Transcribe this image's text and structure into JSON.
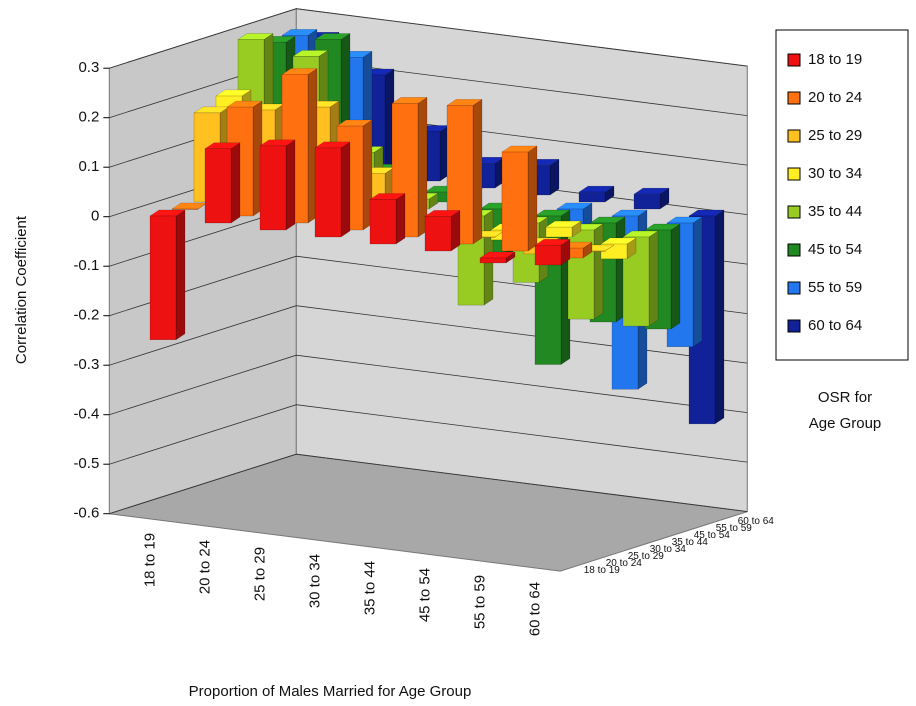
{
  "chart_data": {
    "type": "bar3d",
    "x_label": "Proportion of Males Married for Age Group",
    "y_label": "Correlation Coefficient",
    "z_label": [
      "OSR for",
      "Age Group"
    ],
    "categories": [
      "18 to 19",
      "20 to 24",
      "25 to 29",
      "30 to 34",
      "35 to 44",
      "45 to 54",
      "55 to 59",
      "60 to 64"
    ],
    "ylim": [
      -0.6,
      0.3
    ],
    "yticks": [
      -0.6,
      -0.5,
      -0.4,
      -0.3,
      -0.2,
      -0.1,
      0,
      0.1,
      0.2,
      0.3
    ],
    "grid": true,
    "legend": "right",
    "series": [
      {
        "name": "18 to 19",
        "color": "#ee1111",
        "values": [
          -0.25,
          0.15,
          0.17,
          0.18,
          0.09,
          0.07,
          -0.01,
          0.04
        ]
      },
      {
        "name": "20 to 24",
        "color": "#ff7010",
        "values": [
          0.0,
          0.22,
          0.3,
          0.21,
          0.27,
          0.28,
          0.2,
          0.02
        ]
      },
      {
        "name": "25 to 29",
        "color": "#ffc020",
        "values": [
          0.18,
          0.2,
          0.22,
          0.1,
          0.02,
          0.0,
          -0.02,
          0.0
        ]
      },
      {
        "name": "30 to 34",
        "color": "#ffee22",
        "values": [
          0.2,
          0.18,
          -0.03,
          0.05,
          -0.03,
          -0.02,
          0.02,
          -0.03
        ]
      },
      {
        "name": "35 to 44",
        "color": "#99cc22",
        "values": [
          0.3,
          0.28,
          0.1,
          0.02,
          -0.18,
          -0.12,
          -0.18,
          -0.18
        ]
      },
      {
        "name": "45 to 54",
        "color": "#228822",
        "values": [
          0.28,
          0.3,
          0.05,
          0.02,
          -0.1,
          -0.3,
          -0.2,
          -0.2
        ]
      },
      {
        "name": "55 to 59",
        "color": "#2277ee",
        "values": [
          0.28,
          0.25,
          0.08,
          0.02,
          0.05,
          -0.2,
          -0.35,
          -0.25
        ]
      },
      {
        "name": "60 to 64",
        "color": "#112299",
        "values": [
          0.26,
          0.2,
          0.1,
          0.05,
          0.06,
          0.02,
          0.03,
          -0.42
        ]
      }
    ]
  }
}
